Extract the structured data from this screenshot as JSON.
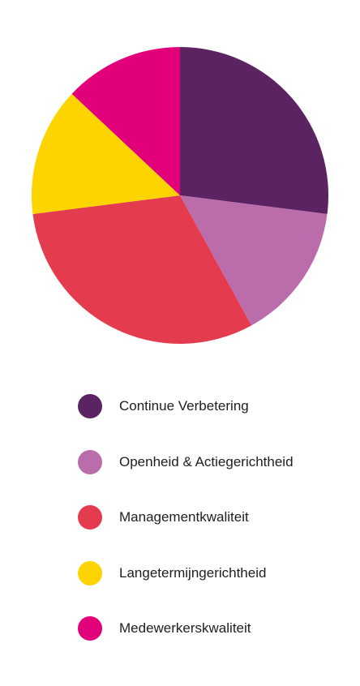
{
  "chart_data": {
    "type": "pie",
    "title": "",
    "slices": [
      {
        "label": "Continue Verbetering",
        "value": 27,
        "color": "#5c2363"
      },
      {
        "label": "Openheid & Actiegerichtheid",
        "value": 15,
        "color": "#bb6dab"
      },
      {
        "label": "Managementkwaliteit",
        "value": 31,
        "color": "#e43b4e"
      },
      {
        "label": "Langetermijngerichtheid",
        "value": 14,
        "color": "#fdd300"
      },
      {
        "label": "Medewerkerskwaliteit",
        "value": 13,
        "color": "#e2007a"
      }
    ],
    "start_angle_deg": 0,
    "direction": "clockwise",
    "legend_position": "bottom"
  }
}
